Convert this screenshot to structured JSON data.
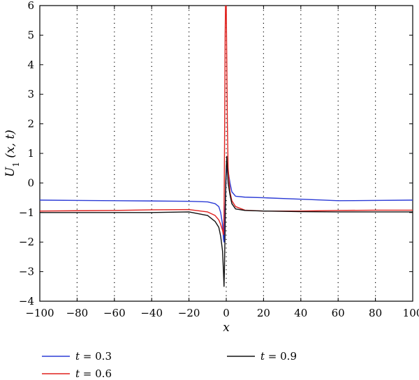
{
  "chart_data": {
    "type": "line",
    "xlabel": "x",
    "ylabel": "U1 (x, t)",
    "xlim": [
      -100,
      100
    ],
    "ylim": [
      -4,
      6
    ],
    "x_ticks": [
      "−100",
      "−80",
      "−60",
      "−40",
      "−20",
      "0",
      "20",
      "40",
      "60",
      "80",
      "100"
    ],
    "y_ticks": [
      "−4",
      "−3",
      "−2",
      "−1",
      "0",
      "1",
      "2",
      "3",
      "4",
      "5",
      "6"
    ],
    "x_tick_values": [
      -100,
      -80,
      -60,
      -40,
      -20,
      0,
      20,
      40,
      60,
      80,
      100
    ],
    "y_tick_values": [
      -4,
      -3,
      -2,
      -1,
      0,
      1,
      2,
      3,
      4,
      5,
      6
    ],
    "grid": "vertical dotted",
    "legend_placement": "bottom",
    "series": [
      {
        "name": "t = 0.3",
        "color": "#2b3bd6",
        "points": [
          [
            -100,
            -0.58
          ],
          [
            -80,
            -0.59
          ],
          [
            -60,
            -0.6
          ],
          [
            -40,
            -0.61
          ],
          [
            -20,
            -0.62
          ],
          [
            -10,
            -0.64
          ],
          [
            -6,
            -0.7
          ],
          [
            -4,
            -0.8
          ],
          [
            -3,
            -1.0
          ],
          [
            -2,
            -1.4
          ],
          [
            -1.5,
            -1.9
          ],
          [
            -1.2,
            -2.0
          ],
          [
            -1,
            -1.5
          ],
          [
            -0.5,
            -0.6
          ],
          [
            0,
            0.3
          ],
          [
            0.5,
            0.6
          ],
          [
            1,
            0.4
          ],
          [
            2,
            0.0
          ],
          [
            3,
            -0.3
          ],
          [
            5,
            -0.45
          ],
          [
            10,
            -0.48
          ],
          [
            20,
            -0.5
          ],
          [
            40,
            -0.55
          ],
          [
            60,
            -0.6
          ],
          [
            80,
            -0.59
          ],
          [
            100,
            -0.58
          ]
        ]
      },
      {
        "name": "t = 0.6",
        "color": "#e0201d",
        "points": [
          [
            -100,
            -0.95
          ],
          [
            -80,
            -0.94
          ],
          [
            -60,
            -0.93
          ],
          [
            -40,
            -0.91
          ],
          [
            -20,
            -0.9
          ],
          [
            -10,
            -0.98
          ],
          [
            -6,
            -1.1
          ],
          [
            -4,
            -1.25
          ],
          [
            -3,
            -1.4
          ],
          [
            -2,
            -1.6
          ],
          [
            -1.5,
            -1.75
          ],
          [
            -1.2,
            -1.0
          ],
          [
            -1,
            0.5
          ],
          [
            -0.8,
            2.5
          ],
          [
            -0.6,
            5.0
          ],
          [
            -0.4,
            6.0
          ],
          [
            0,
            6.0
          ],
          [
            0.3,
            4.0
          ],
          [
            0.6,
            2.0
          ],
          [
            1,
            0.5
          ],
          [
            2,
            -0.3
          ],
          [
            3,
            -0.6
          ],
          [
            5,
            -0.8
          ],
          [
            10,
            -0.92
          ],
          [
            20,
            -0.95
          ],
          [
            40,
            -0.95
          ],
          [
            60,
            -0.93
          ],
          [
            80,
            -0.92
          ],
          [
            100,
            -0.92
          ]
        ]
      },
      {
        "name": "t = 0.9",
        "color": "#111111",
        "points": [
          [
            -100,
            -1.0
          ],
          [
            -80,
            -1.0
          ],
          [
            -60,
            -1.0
          ],
          [
            -40,
            -1.0
          ],
          [
            -20,
            -0.98
          ],
          [
            -10,
            -1.1
          ],
          [
            -6,
            -1.3
          ],
          [
            -4,
            -1.5
          ],
          [
            -3,
            -1.8
          ],
          [
            -2,
            -2.3
          ],
          [
            -1.5,
            -3.0
          ],
          [
            -1.2,
            -3.5
          ],
          [
            -1,
            -3.0
          ],
          [
            -0.6,
            -1.5
          ],
          [
            -0.3,
            0.0
          ],
          [
            0,
            0.5
          ],
          [
            0.3,
            0.9
          ],
          [
            0.6,
            0.5
          ],
          [
            1,
            0.0
          ],
          [
            2,
            -0.4
          ],
          [
            3,
            -0.7
          ],
          [
            5,
            -0.88
          ],
          [
            10,
            -0.93
          ],
          [
            20,
            -0.95
          ],
          [
            40,
            -0.97
          ],
          [
            60,
            -0.98
          ],
          [
            80,
            -0.98
          ],
          [
            100,
            -0.98
          ]
        ]
      }
    ]
  }
}
